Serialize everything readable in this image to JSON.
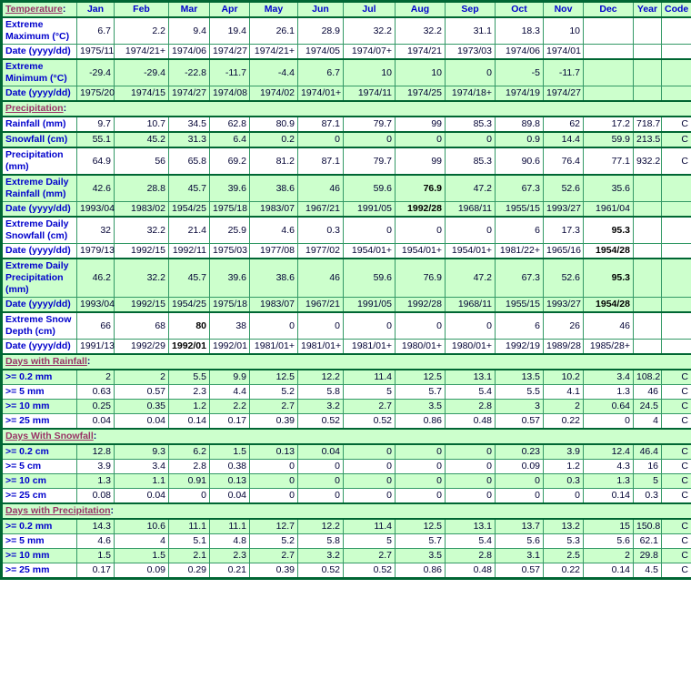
{
  "colors": {
    "border-dark": "#006633",
    "border-light": "#339966",
    "green-bg": "#CCFFCC",
    "label-blue": "#0000CC",
    "value-dark": "#000033",
    "link-color": "#993366",
    "colon-color": "#000080"
  },
  "chart_data": {
    "type": "table",
    "columns": [
      "Jan",
      "Feb",
      "Mar",
      "Apr",
      "May",
      "Jun",
      "Jul",
      "Aug",
      "Sep",
      "Oct",
      "Nov",
      "Dec",
      "Year",
      "Code"
    ],
    "rows": [
      {
        "kind": "header",
        "link": "Temperature",
        "bg": "green"
      },
      {
        "kind": "data",
        "bg": "white",
        "group": true,
        "label": "Extreme Maximum (°C)",
        "values": [
          "6.7",
          "2.2",
          "9.4",
          "19.4",
          "26.1",
          "28.9",
          "32.2",
          "32.2",
          "31.1",
          "18.3",
          "10",
          "",
          "",
          ""
        ]
      },
      {
        "kind": "data",
        "bg": "white",
        "label": "Date (yyyy/dd)",
        "values": [
          "1975/11",
          "1974/21+",
          "1974/06",
          "1974/27",
          "1974/21+",
          "1974/05",
          "1974/07+",
          "1974/21",
          "1973/03",
          "1974/06",
          "1974/01",
          "",
          "",
          ""
        ]
      },
      {
        "kind": "data",
        "bg": "green",
        "group": true,
        "label": "Extreme Minimum (°C)",
        "values": [
          "-29.4",
          "-29.4",
          "-22.8",
          "-11.7",
          "-4.4",
          "6.7",
          "10",
          "10",
          "0",
          "-5",
          "-11.7",
          "",
          "",
          ""
        ]
      },
      {
        "kind": "data",
        "bg": "green",
        "label": "Date (yyyy/dd)",
        "values": [
          "1975/20",
          "1974/15",
          "1974/27",
          "1974/08",
          "1974/02",
          "1974/01+",
          "1974/11",
          "1974/25",
          "1974/18+",
          "1974/19",
          "1974/27",
          "",
          "",
          ""
        ]
      },
      {
        "kind": "section",
        "link": "Precipitation"
      },
      {
        "kind": "data",
        "bg": "white",
        "group": true,
        "label": "Rainfall (mm)",
        "values": [
          "9.7",
          "10.7",
          "34.5",
          "62.8",
          "80.9",
          "87.1",
          "79.7",
          "99",
          "85.3",
          "89.8",
          "62",
          "17.2",
          "718.7",
          "C"
        ]
      },
      {
        "kind": "data",
        "bg": "green",
        "group": true,
        "label": "Snowfall (cm)",
        "values": [
          "55.1",
          "45.2",
          "31.3",
          "6.4",
          "0.2",
          "0",
          "0",
          "0",
          "0",
          "0.9",
          "14.4",
          "59.9",
          "213.5",
          "C"
        ]
      },
      {
        "kind": "data",
        "bg": "white",
        "group": true,
        "label": "Precipitation (mm)",
        "values": [
          "64.9",
          "56",
          "65.8",
          "69.2",
          "81.2",
          "87.1",
          "79.7",
          "99",
          "85.3",
          "90.6",
          "76.4",
          "77.1",
          "932.2",
          "C"
        ]
      },
      {
        "kind": "data",
        "bg": "green",
        "group": true,
        "label": "Extreme Daily Rainfall (mm)",
        "bold": [
          7
        ],
        "values": [
          "42.6",
          "28.8",
          "45.7",
          "39.6",
          "38.6",
          "46",
          "59.6",
          "76.9",
          "47.2",
          "67.3",
          "52.6",
          "35.6",
          "",
          ""
        ]
      },
      {
        "kind": "data",
        "bg": "green",
        "label": "Date (yyyy/dd)",
        "bold": [
          7
        ],
        "values": [
          "1993/04",
          "1983/02",
          "1954/25",
          "1975/18",
          "1983/07",
          "1967/21",
          "1991/05",
          "1992/28",
          "1968/11",
          "1955/15",
          "1993/27",
          "1961/04",
          "",
          ""
        ]
      },
      {
        "kind": "data",
        "bg": "white",
        "group": true,
        "label": "Extreme Daily Snowfall (cm)",
        "bold": [
          11
        ],
        "values": [
          "32",
          "32.2",
          "21.4",
          "25.9",
          "4.6",
          "0.3",
          "0",
          "0",
          "0",
          "6",
          "17.3",
          "95.3",
          "",
          ""
        ]
      },
      {
        "kind": "data",
        "bg": "white",
        "label": "Date (yyyy/dd)",
        "bold": [
          11
        ],
        "values": [
          "1979/13",
          "1992/15",
          "1992/11",
          "1975/03",
          "1977/08",
          "1977/02",
          "1954/01+",
          "1954/01+",
          "1954/01+",
          "1981/22+",
          "1965/16",
          "1954/28",
          "",
          ""
        ]
      },
      {
        "kind": "data",
        "bg": "green",
        "group": true,
        "label": "Extreme Daily Precipitation (mm)",
        "bold": [
          11
        ],
        "values": [
          "46.2",
          "32.2",
          "45.7",
          "39.6",
          "38.6",
          "46",
          "59.6",
          "76.9",
          "47.2",
          "67.3",
          "52.6",
          "95.3",
          "",
          ""
        ]
      },
      {
        "kind": "data",
        "bg": "green",
        "label": "Date (yyyy/dd)",
        "bold": [
          11
        ],
        "values": [
          "1993/04",
          "1992/15",
          "1954/25",
          "1975/18",
          "1983/07",
          "1967/21",
          "1991/05",
          "1992/28",
          "1968/11",
          "1955/15",
          "1993/27",
          "1954/28",
          "",
          ""
        ]
      },
      {
        "kind": "data",
        "bg": "white",
        "group": true,
        "label": "Extreme Snow Depth (cm)",
        "bold": [
          2
        ],
        "values": [
          "66",
          "68",
          "80",
          "38",
          "0",
          "0",
          "0",
          "0",
          "0",
          "6",
          "26",
          "46",
          "",
          ""
        ]
      },
      {
        "kind": "data",
        "bg": "white",
        "label": "Date (yyyy/dd)",
        "bold": [
          2
        ],
        "values": [
          "1991/13",
          "1992/29",
          "1992/01",
          "1992/01",
          "1981/01+",
          "1981/01+",
          "1981/01+",
          "1980/01+",
          "1980/01+",
          "1992/19",
          "1989/28",
          "1985/28+",
          "",
          ""
        ]
      },
      {
        "kind": "section",
        "link": "Days with Rainfall"
      },
      {
        "kind": "data",
        "bg": "green",
        "label": ">= 0.2 mm",
        "values": [
          "2",
          "2",
          "5.5",
          "9.9",
          "12.5",
          "12.2",
          "11.4",
          "12.5",
          "13.1",
          "13.5",
          "10.2",
          "3.4",
          "108.2",
          "C"
        ]
      },
      {
        "kind": "data",
        "bg": "white",
        "label": ">= 5 mm",
        "values": [
          "0.63",
          "0.57",
          "2.3",
          "4.4",
          "5.2",
          "5.8",
          "5",
          "5.7",
          "5.4",
          "5.5",
          "4.1",
          "1.3",
          "46",
          "C"
        ]
      },
      {
        "kind": "data",
        "bg": "green",
        "label": ">= 10 mm",
        "values": [
          "0.25",
          "0.35",
          "1.2",
          "2.2",
          "2.7",
          "3.2",
          "2.7",
          "3.5",
          "2.8",
          "3",
          "2",
          "0.64",
          "24.5",
          "C"
        ]
      },
      {
        "kind": "data",
        "bg": "white",
        "label": ">= 25 mm",
        "values": [
          "0.04",
          "0.04",
          "0.14",
          "0.17",
          "0.39",
          "0.52",
          "0.52",
          "0.86",
          "0.48",
          "0.57",
          "0.22",
          "0",
          "4",
          "C"
        ]
      },
      {
        "kind": "section",
        "link": "Days With Snowfall"
      },
      {
        "kind": "data",
        "bg": "green",
        "label": ">= 0.2 cm",
        "values": [
          "12.8",
          "9.3",
          "6.2",
          "1.5",
          "0.13",
          "0.04",
          "0",
          "0",
          "0",
          "0.23",
          "3.9",
          "12.4",
          "46.4",
          "C"
        ]
      },
      {
        "kind": "data",
        "bg": "white",
        "label": ">= 5 cm",
        "values": [
          "3.9",
          "3.4",
          "2.8",
          "0.38",
          "0",
          "0",
          "0",
          "0",
          "0",
          "0.09",
          "1.2",
          "4.3",
          "16",
          "C"
        ]
      },
      {
        "kind": "data",
        "bg": "green",
        "label": ">= 10 cm",
        "values": [
          "1.3",
          "1.1",
          "0.91",
          "0.13",
          "0",
          "0",
          "0",
          "0",
          "0",
          "0",
          "0.3",
          "1.3",
          "5",
          "C"
        ]
      },
      {
        "kind": "data",
        "bg": "white",
        "label": ">= 25 cm",
        "values": [
          "0.08",
          "0.04",
          "0",
          "0.04",
          "0",
          "0",
          "0",
          "0",
          "0",
          "0",
          "0",
          "0.14",
          "0.3",
          "C"
        ]
      },
      {
        "kind": "section",
        "link": "Days with Precipitation"
      },
      {
        "kind": "data",
        "bg": "green",
        "label": ">= 0.2 mm",
        "values": [
          "14.3",
          "10.6",
          "11.1",
          "11.1",
          "12.7",
          "12.2",
          "11.4",
          "12.5",
          "13.1",
          "13.7",
          "13.2",
          "15",
          "150.8",
          "C"
        ]
      },
      {
        "kind": "data",
        "bg": "white",
        "label": ">= 5 mm",
        "values": [
          "4.6",
          "4",
          "5.1",
          "4.8",
          "5.2",
          "5.8",
          "5",
          "5.7",
          "5.4",
          "5.6",
          "5.3",
          "5.6",
          "62.1",
          "C"
        ]
      },
      {
        "kind": "data",
        "bg": "green",
        "label": ">= 10 mm",
        "values": [
          "1.5",
          "1.5",
          "2.1",
          "2.3",
          "2.7",
          "3.2",
          "2.7",
          "3.5",
          "2.8",
          "3.1",
          "2.5",
          "2",
          "29.8",
          "C"
        ]
      },
      {
        "kind": "data",
        "bg": "white",
        "label": ">= 25 mm",
        "values": [
          "0.17",
          "0.09",
          "0.29",
          "0.21",
          "0.39",
          "0.52",
          "0.52",
          "0.86",
          "0.48",
          "0.57",
          "0.22",
          "0.14",
          "4.5",
          "C"
        ]
      }
    ]
  }
}
